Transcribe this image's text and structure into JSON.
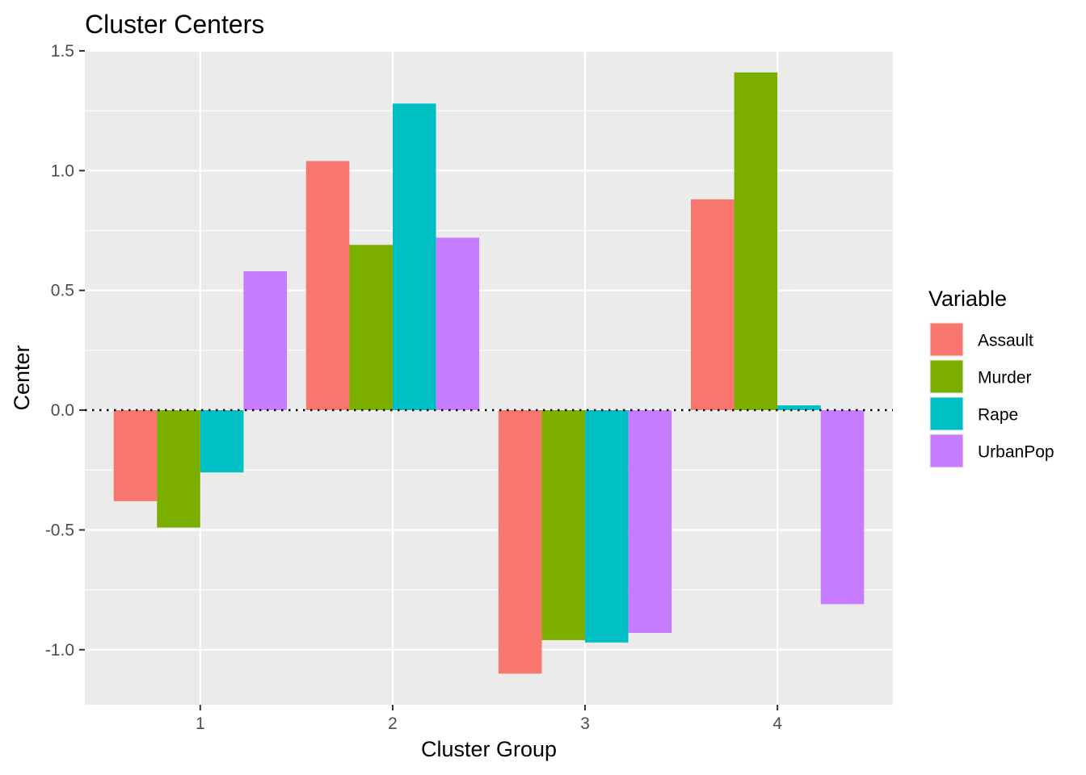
{
  "chart_data": {
    "type": "bar",
    "title": "Cluster Centers",
    "xlabel": "Cluster Group",
    "ylabel": "Center",
    "categories": [
      "1",
      "2",
      "3",
      "4"
    ],
    "ylim": [
      -1.23,
      1.5
    ],
    "yticks": [
      -1.0,
      -0.5,
      0.0,
      0.5,
      1.0,
      1.5
    ],
    "ytick_labels": [
      "-1.0",
      "-0.5",
      "0.0",
      "0.5",
      "1.0",
      "1.5"
    ],
    "grid": true,
    "reference_line": {
      "y": 0,
      "style": "dotted"
    },
    "legend": {
      "title": "Variable",
      "placement": "right"
    },
    "series": [
      {
        "name": "Assault",
        "color": "#F8766D",
        "values": [
          -0.38,
          1.04,
          -1.1,
          0.88
        ]
      },
      {
        "name": "Murder",
        "color": "#7CAE00",
        "values": [
          -0.49,
          0.69,
          -0.96,
          1.41
        ]
      },
      {
        "name": "Rape",
        "color": "#00BFC4",
        "values": [
          -0.26,
          1.28,
          -0.97,
          0.02
        ]
      },
      {
        "name": "UrbanPop",
        "color": "#C77CFF",
        "values": [
          0.58,
          0.72,
          -0.93,
          -0.81
        ]
      }
    ]
  }
}
